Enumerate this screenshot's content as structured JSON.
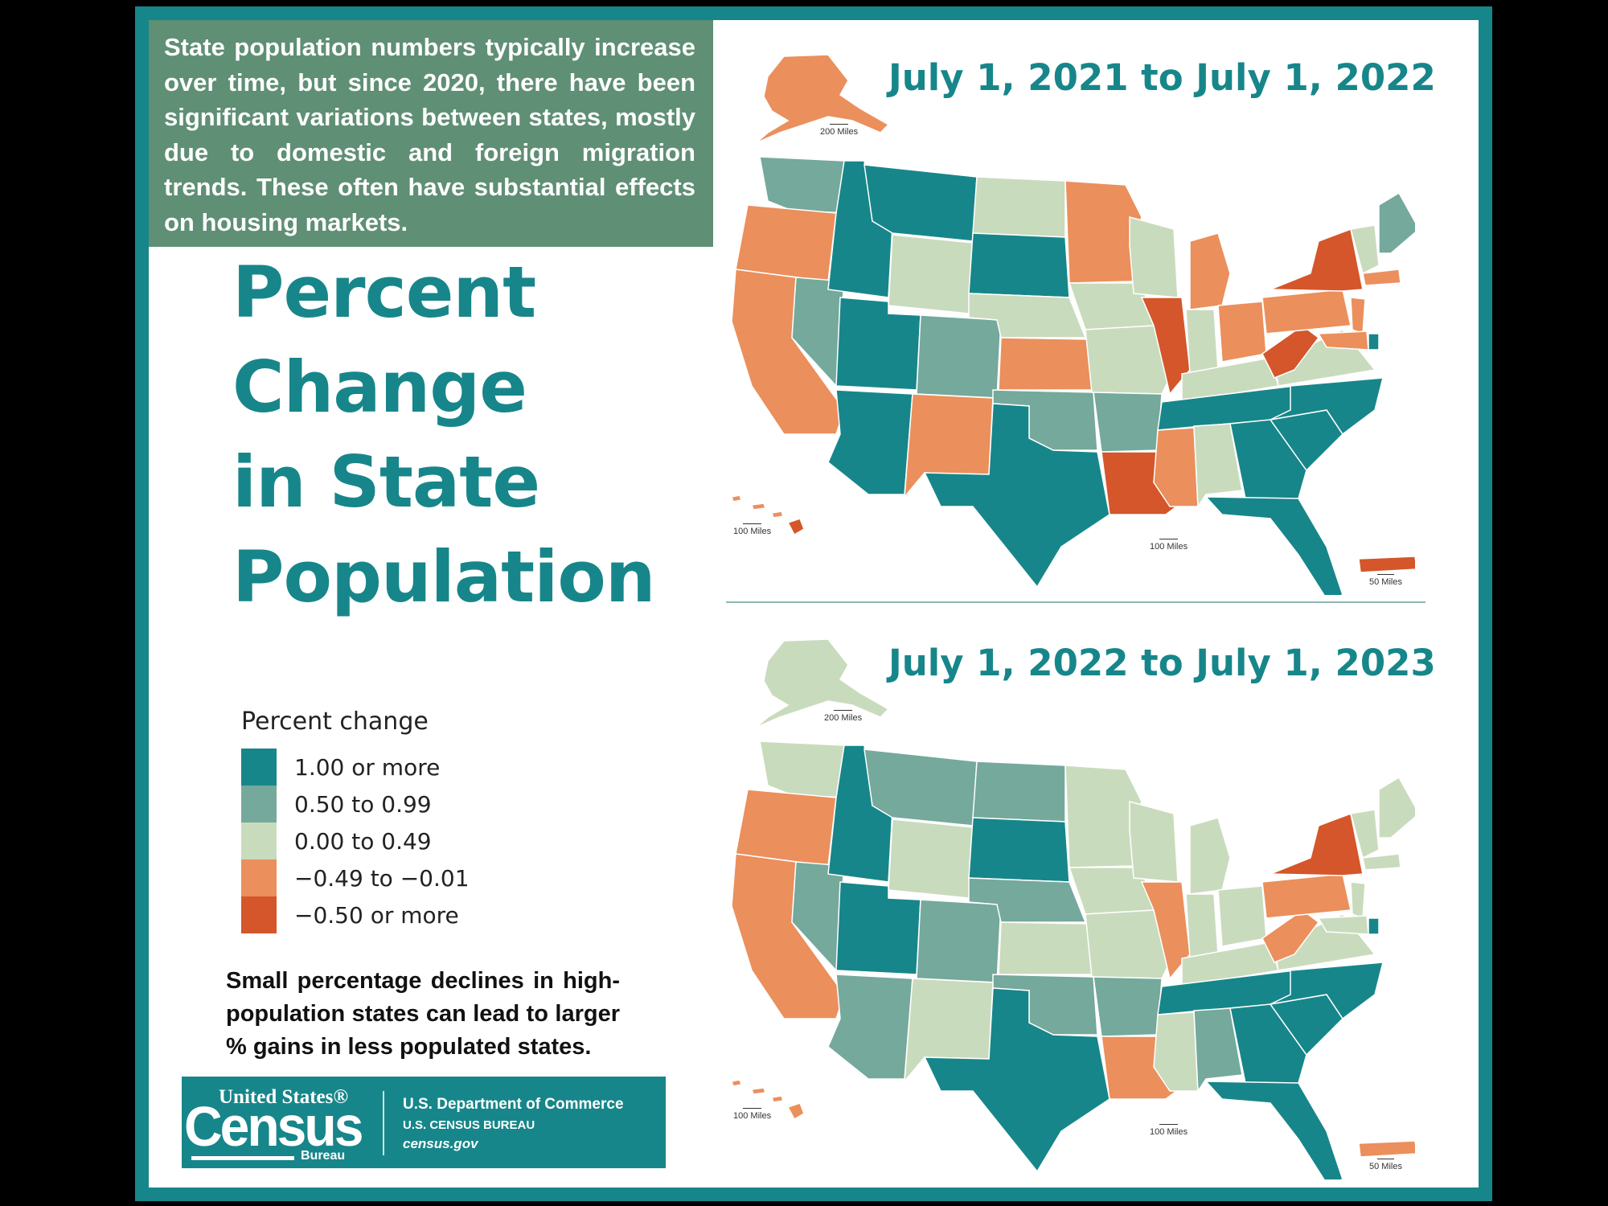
{
  "intro_text": "State population numbers typically increase over time, but since 2020, there have been significant variations between states, mostly due to domestic and foreign migration trends. These often have substantial effects on housing markets.",
  "title_lines": [
    "Percent",
    "Change",
    "in State",
    "Population"
  ],
  "maps": [
    {
      "title": "July 1, 2021 to July 1, 2022",
      "scales": {
        "alaska": "200 Miles",
        "hawaii": "100 Miles",
        "conus": "100 Miles",
        "pr": "50 Miles"
      }
    },
    {
      "title": "July 1, 2022 to July 1, 2023",
      "scales": {
        "alaska": "200 Miles",
        "hawaii": "100 Miles",
        "conus": "100 Miles",
        "pr": "50 Miles"
      }
    }
  ],
  "legend": {
    "title": "Percent change",
    "items": [
      {
        "label": "1.00 or more",
        "color": "#17868a"
      },
      {
        "label": "0.50 to 0.99",
        "color": "#74a99c"
      },
      {
        "label": "0.00 to 0.49",
        "color": "#c9dbbd"
      },
      {
        "label": "−0.49 to −0.01",
        "color": "#eb8f5c"
      },
      {
        "label": "−0.50 or more",
        "color": "#d4562a"
      }
    ]
  },
  "note_text": "Small percentage declines in high-population states can lead to larger % gains in less populated states.",
  "logo": {
    "united_states": "United States®",
    "census": "Census",
    "bureau": "Bureau",
    "department": "U.S. Department of Commerce",
    "bureau_name": "U.S. CENSUS BUREAU",
    "website": "census.gov"
  },
  "colors": {
    "frame": "#17868a",
    "intro_bg": "#5f8f74"
  }
}
